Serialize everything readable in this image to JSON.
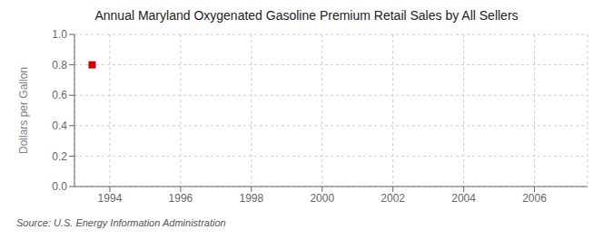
{
  "chart_data": {
    "type": "scatter",
    "title": "Annual Maryland Oxygenated Gasoline Premium Retail Sales by All Sellers",
    "y_label": "Dollars per Gallon",
    "source": "Source: U.S. Energy Information Administration",
    "x": [
      1993.5
    ],
    "values": [
      0.8
    ],
    "color": "#cc0000",
    "marker": "square",
    "xlim": [
      1993.0,
      2007.5
    ],
    "ylim": [
      0.0,
      1.0
    ],
    "xticks": [
      1994,
      1996,
      1998,
      2000,
      2002,
      2004,
      2006
    ],
    "yticks": [
      {
        "value": 0.0,
        "label": "0.0"
      },
      0.2,
      0.4,
      0.6,
      0.8,
      {
        "value": 1.0,
        "label": "1.0"
      }
    ],
    "grid": true
  }
}
